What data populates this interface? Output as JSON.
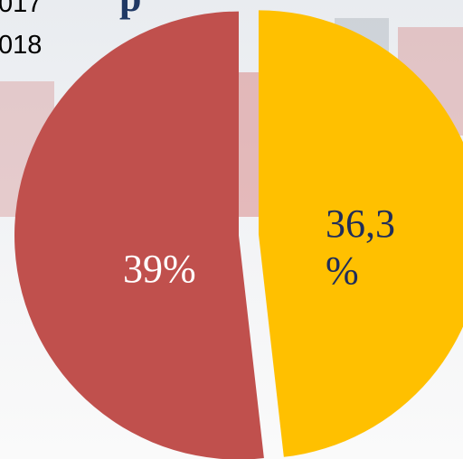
{
  "chart_data": {
    "type": "pie",
    "title": "р",
    "series": [
      {
        "name": "017",
        "color": "#ffc000",
        "values": [
          36.3
        ],
        "value_labels": [
          "36,3 %"
        ]
      },
      {
        "name": "018",
        "color": "#c0504d",
        "values": [
          39
        ],
        "value_labels": [
          "39%"
        ]
      }
    ]
  }
}
